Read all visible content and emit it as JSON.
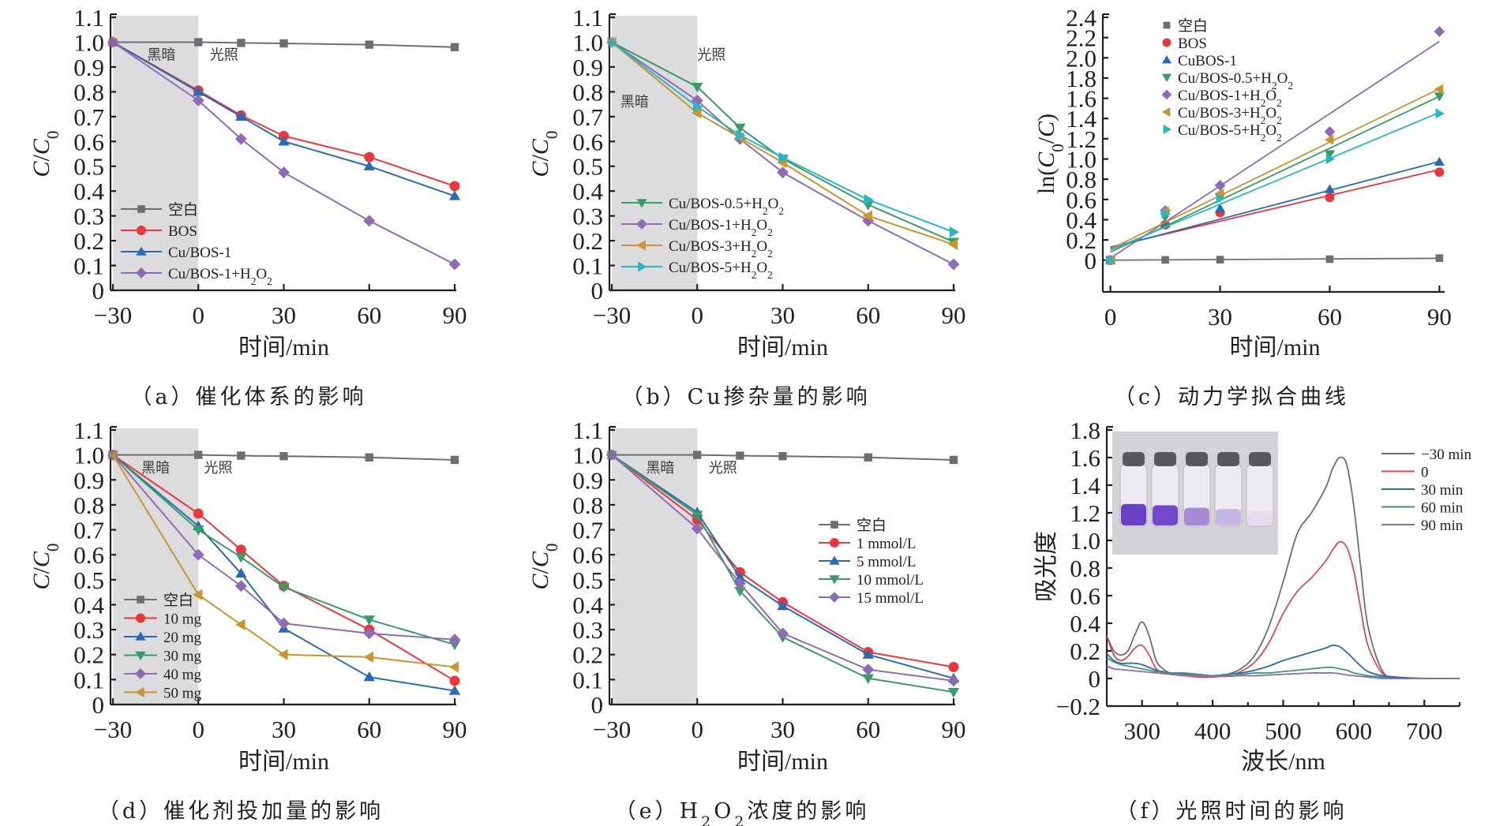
{
  "figure": {
    "markers_legend": {
      "square": "square",
      "circle": "circle",
      "up": "triangle-up",
      "down": "triangle-down",
      "diamond": "diamond",
      "left": "triangle-left",
      "right": "triangle-right"
    }
  },
  "chart_data": [
    {
      "id": "a",
      "type": "line",
      "caption": "（a）催化体系的影响",
      "xlabel": "时间/min",
      "ylabel": "C/C0",
      "xlim": [
        -30,
        90
      ],
      "ylim": [
        0,
        1.1
      ],
      "xticks": [
        -30,
        0,
        30,
        60,
        90
      ],
      "yticks": [
        0,
        0.1,
        0.2,
        0.3,
        0.4,
        0.5,
        0.6,
        0.7,
        0.8,
        0.9,
        1.0,
        1.1
      ],
      "ytick_labels": [
        "0",
        "0.1",
        "0.2",
        "0.3",
        "0.4",
        "0.5",
        "0.6",
        "0.7",
        "0.8",
        "0.9",
        "1.0",
        "1.1"
      ],
      "shaded_region": {
        "from": -30,
        "to": 0,
        "color": "#dcdcde"
      },
      "region_labels": {
        "dark": "黑暗",
        "light": "光照"
      },
      "region_label_pos": [
        {
          "x": -13,
          "y": 0.93
        },
        {
          "x": 9,
          "y": 0.93
        }
      ],
      "legend": "lower-left",
      "x": [
        -30,
        0,
        15,
        30,
        60,
        90
      ],
      "series": [
        {
          "name": "空白",
          "color": "#6d6e71",
          "marker": "square",
          "values": [
            1.0,
            1.0,
            0.997,
            0.995,
            0.99,
            0.98
          ]
        },
        {
          "name": "BOS",
          "color": "#e8383d",
          "marker": "circle",
          "values": [
            1.0,
            0.805,
            0.705,
            0.622,
            0.537,
            0.42
          ]
        },
        {
          "name": "Cu/BOS-1",
          "color": "#2a6ab5",
          "marker": "up",
          "values": [
            1.0,
            0.8,
            0.7,
            0.6,
            0.5,
            0.38
          ]
        },
        {
          "name": "Cu/BOS-1+H₂O₂",
          "color": "#8e6bb5",
          "marker": "diamond",
          "values": [
            1.0,
            0.765,
            0.61,
            0.475,
            0.28,
            0.105
          ]
        }
      ]
    },
    {
      "id": "b",
      "type": "line",
      "caption": "（b）Cu掺杂量的影响",
      "xlabel": "时间/min",
      "ylabel": "C/C0",
      "xlim": [
        -30,
        90
      ],
      "ylim": [
        0,
        1.1
      ],
      "xticks": [
        -30,
        0,
        30,
        60,
        90
      ],
      "yticks": [
        0,
        0.1,
        0.2,
        0.3,
        0.4,
        0.5,
        0.6,
        0.7,
        0.8,
        0.9,
        1.0,
        1.1
      ],
      "ytick_labels": [
        "0",
        "0.1",
        "0.2",
        "0.3",
        "0.4",
        "0.5",
        "0.6",
        "0.7",
        "0.8",
        "0.9",
        "1.0",
        "1.1"
      ],
      "shaded_region": {
        "from": -30,
        "to": 0,
        "color": "#dcdcde"
      },
      "region_labels": {
        "dark": "黑暗",
        "light": "光照"
      },
      "region_label_pos": [
        {
          "x": -22,
          "y": 0.74
        },
        {
          "x": 5,
          "y": 0.93
        }
      ],
      "legend": "lower-left",
      "x": [
        -30,
        0,
        15,
        30,
        60,
        90
      ],
      "series": [
        {
          "name": "Cu/BOS-0.5+H₂O₂",
          "color": "#3a9a68",
          "marker": "down",
          "values": [
            1.0,
            0.82,
            0.655,
            0.53,
            0.345,
            0.195
          ]
        },
        {
          "name": "Cu/BOS-1+H₂O₂",
          "color": "#8e6bb5",
          "marker": "diamond",
          "values": [
            1.0,
            0.765,
            0.61,
            0.475,
            0.28,
            0.105
          ]
        },
        {
          "name": "Cu/BOS-3+H₂O₂",
          "color": "#c9952e",
          "marker": "left",
          "values": [
            1.0,
            0.715,
            0.615,
            0.515,
            0.3,
            0.185
          ]
        },
        {
          "name": "Cu/BOS-5+H₂O₂",
          "color": "#27b7c0",
          "marker": "right",
          "values": [
            1.0,
            0.74,
            0.625,
            0.535,
            0.365,
            0.235
          ]
        }
      ]
    },
    {
      "id": "c",
      "type": "scatter",
      "caption": "（c）动力学拟合曲线",
      "xlabel": "时间/min",
      "ylabel": "ln(C0/C)",
      "xlim": [
        -1,
        91
      ],
      "ylim": [
        -0.15,
        2.4
      ],
      "xticks": [
        0,
        30,
        60,
        90
      ],
      "yticks": [
        0,
        0.2,
        0.4,
        0.6,
        0.8,
        1.0,
        1.2,
        1.4,
        1.6,
        1.8,
        2.0,
        2.2,
        2.4
      ],
      "ytick_labels": [
        "0",
        "0.2",
        "0.4",
        "0.6",
        "0.8",
        "1.0",
        "1.2",
        "1.4",
        "1.6",
        "1.8",
        "2.0",
        "2.2",
        "2.4"
      ],
      "legend": "top-left",
      "x": [
        0,
        15,
        30,
        60,
        90
      ],
      "series": [
        {
          "name": "空白",
          "color": "#6d6e71",
          "marker": "square",
          "values": [
            0,
            0.003,
            0.005,
            0.01,
            0.02
          ],
          "fit": [
            0,
            0.0002
          ]
        },
        {
          "name": "BOS",
          "color": "#e8383d",
          "marker": "circle",
          "values": [
            0,
            0.35,
            0.47,
            0.62,
            0.87
          ],
          "fit": [
            0.13,
            0.0085
          ]
        },
        {
          "name": "CuBOS-1",
          "color": "#2a6ab5",
          "marker": "up",
          "values": [
            0,
            0.36,
            0.51,
            0.7,
            0.97
          ],
          "fit": [
            0.12,
            0.0095
          ]
        },
        {
          "name": "Cu/BOS-0.5+H₂O₂",
          "color": "#3a9a68",
          "marker": "down",
          "values": [
            0,
            0.43,
            0.62,
            1.05,
            1.62
          ],
          "fit": [
            0.08,
            0.0171
          ]
        },
        {
          "name": "Cu/BOS-1+H₂O₂",
          "color": "#8e6bb5",
          "marker": "diamond",
          "values": [
            0,
            0.49,
            0.74,
            1.27,
            2.26
          ],
          "fit": [
            0.02,
            0.0238
          ]
        },
        {
          "name": "Cu/BOS-3+H₂O₂",
          "color": "#c9952e",
          "marker": "left",
          "values": [
            0,
            0.48,
            0.66,
            1.19,
            1.69
          ],
          "fit": [
            0.11,
            0.0176
          ]
        },
        {
          "name": "Cu/BOS-5+H₂O₂",
          "color": "#27b7c0",
          "marker": "right",
          "values": [
            0,
            0.46,
            0.61,
            1.0,
            1.45
          ],
          "fit": [
            0.1,
            0.0151
          ]
        }
      ]
    },
    {
      "id": "d",
      "type": "line",
      "caption": "（d）催化剂投加量的影响",
      "xlabel": "时间/min",
      "ylabel": "C/C0",
      "xlim": [
        -30,
        90
      ],
      "ylim": [
        0,
        1.1
      ],
      "xticks": [
        -30,
        0,
        30,
        60,
        90
      ],
      "yticks": [
        0,
        0.1,
        0.2,
        0.3,
        0.4,
        0.5,
        0.6,
        0.7,
        0.8,
        0.9,
        1.0,
        1.1
      ],
      "ytick_labels": [
        "0",
        "0.1",
        "0.2",
        "0.3",
        "0.4",
        "0.5",
        "0.6",
        "0.7",
        "0.8",
        "0.9",
        "1.0",
        "1.1"
      ],
      "shaded_region": {
        "from": -30,
        "to": 0,
        "color": "#dcdcde"
      },
      "region_labels": {
        "dark": "黑暗",
        "light": "光照"
      },
      "region_label_pos": [
        {
          "x": -15,
          "y": 0.93
        },
        {
          "x": 7,
          "y": 0.93
        }
      ],
      "legend": "lower-left",
      "x": [
        -30,
        0,
        15,
        30,
        60,
        90
      ],
      "series": [
        {
          "name": "空白",
          "color": "#6d6e71",
          "marker": "square",
          "values": [
            1.0,
            1.0,
            0.997,
            0.995,
            0.99,
            0.98
          ]
        },
        {
          "name": "10 mg",
          "color": "#e8383d",
          "marker": "circle",
          "values": [
            1.0,
            0.765,
            0.62,
            0.475,
            0.3,
            0.095
          ]
        },
        {
          "name": "20 mg",
          "color": "#2a6ab5",
          "marker": "up",
          "values": [
            1.0,
            0.715,
            0.525,
            0.305,
            0.11,
            0.055
          ]
        },
        {
          "name": "30 mg",
          "color": "#3a9a68",
          "marker": "down",
          "values": [
            1.0,
            0.7,
            0.59,
            0.47,
            0.34,
            0.24
          ]
        },
        {
          "name": "40 mg",
          "color": "#8e6bb5",
          "marker": "diamond",
          "values": [
            1.0,
            0.6,
            0.475,
            0.325,
            0.285,
            0.26
          ]
        },
        {
          "name": "50 mg",
          "color": "#c9952e",
          "marker": "left",
          "values": [
            1.0,
            0.44,
            0.32,
            0.2,
            0.19,
            0.15
          ]
        }
      ]
    },
    {
      "id": "e",
      "type": "line",
      "caption": "（e）H₂O₂浓度的影响",
      "xlabel": "时间/min",
      "ylabel": "C/C0",
      "xlim": [
        -30,
        90
      ],
      "ylim": [
        0,
        1.1
      ],
      "xticks": [
        -30,
        0,
        30,
        60,
        90
      ],
      "yticks": [
        0,
        0.1,
        0.2,
        0.3,
        0.4,
        0.5,
        0.6,
        0.7,
        0.8,
        0.9,
        1.0,
        1.1
      ],
      "ytick_labels": [
        "0",
        "0.1",
        "0.2",
        "0.3",
        "0.4",
        "0.5",
        "0.6",
        "0.7",
        "0.8",
        "0.9",
        "1.0",
        "1.1"
      ],
      "shaded_region": {
        "from": -30,
        "to": 0,
        "color": "#dcdcde"
      },
      "region_labels": {
        "dark": "黑暗",
        "light": "光照"
      },
      "region_label_pos": [
        {
          "x": -13,
          "y": 0.93
        },
        {
          "x": 9,
          "y": 0.93
        }
      ],
      "legend": "center-right",
      "x": [
        -30,
        0,
        15,
        30,
        60,
        90
      ],
      "series": [
        {
          "name": "空白",
          "color": "#6d6e71",
          "marker": "square",
          "values": [
            1.0,
            1.0,
            0.997,
            0.995,
            0.99,
            0.98
          ]
        },
        {
          "name": "1 mmol/L",
          "color": "#e8383d",
          "marker": "circle",
          "values": [
            1.0,
            0.74,
            0.53,
            0.41,
            0.21,
            0.15
          ]
        },
        {
          "name": "5 mmol/L",
          "color": "#2a6ab5",
          "marker": "up",
          "values": [
            1.0,
            0.77,
            0.51,
            0.395,
            0.2,
            0.105
          ]
        },
        {
          "name": "10 mmol/L",
          "color": "#3a9a68",
          "marker": "down",
          "values": [
            1.0,
            0.76,
            0.455,
            0.27,
            0.105,
            0.05
          ]
        },
        {
          "name": "15 mmol/L",
          "color": "#8e6bb5",
          "marker": "diamond",
          "values": [
            1.0,
            0.705,
            0.485,
            0.285,
            0.14,
            0.095
          ]
        }
      ]
    },
    {
      "id": "f",
      "type": "line",
      "caption": "（f）光照时间的影响",
      "xlabel": "波长/nm",
      "ylabel": "吸光度",
      "xlim": [
        250,
        750
      ],
      "ylim": [
        -0.2,
        1.8
      ],
      "xticks": [
        300,
        400,
        500,
        600,
        700
      ],
      "xminor": [
        350,
        450,
        550,
        650,
        750
      ],
      "yticks": [
        -0.2,
        0,
        0.2,
        0.4,
        0.6,
        0.8,
        1.0,
        1.2,
        1.4,
        1.6,
        1.8
      ],
      "ytick_labels": [
        "-0.2",
        "0",
        "0.2",
        "0.4",
        "0.6",
        "0.8",
        "1.0",
        "1.2",
        "1.4",
        "1.6",
        "1.8"
      ],
      "legend": "top-right",
      "inset": "photo of five vials with purple solution fading from dark violet to clear",
      "x": [
        250,
        260,
        270,
        280,
        290,
        300,
        310,
        320,
        330,
        340,
        360,
        380,
        400,
        420,
        440,
        460,
        480,
        500,
        520,
        540,
        560,
        570,
        580,
        590,
        600,
        610,
        620,
        640,
        660,
        700,
        750
      ],
      "series": [
        {
          "name": "−30 min",
          "color": "#6d6e71",
          "values": [
            0.31,
            0.2,
            0.17,
            0.2,
            0.32,
            0.41,
            0.31,
            0.13,
            0.07,
            0.04,
            0.03,
            0.02,
            0.02,
            0.03,
            0.07,
            0.17,
            0.38,
            0.7,
            1.05,
            1.2,
            1.38,
            1.52,
            1.6,
            1.55,
            1.25,
            0.8,
            0.38,
            0.06,
            0.01,
            0.0,
            0.0
          ]
        },
        {
          "name": "0",
          "color": "#e0484c",
          "values": [
            0.31,
            0.17,
            0.13,
            0.16,
            0.22,
            0.24,
            0.17,
            0.07,
            0.04,
            0.03,
            0.02,
            0.01,
            0.01,
            0.02,
            0.05,
            0.12,
            0.26,
            0.47,
            0.63,
            0.73,
            0.85,
            0.93,
            0.99,
            0.95,
            0.78,
            0.5,
            0.24,
            0.04,
            0.01,
            0.0,
            0.0
          ]
        },
        {
          "name": "30 min",
          "color": "#2a6ab5",
          "values": [
            0.18,
            0.13,
            0.11,
            0.11,
            0.11,
            0.1,
            0.08,
            0.06,
            0.05,
            0.04,
            0.03,
            0.03,
            0.02,
            0.03,
            0.04,
            0.06,
            0.09,
            0.13,
            0.16,
            0.19,
            0.22,
            0.24,
            0.23,
            0.19,
            0.14,
            0.09,
            0.05,
            0.02,
            0.01,
            0.0,
            0.0
          ]
        },
        {
          "name": "60 min",
          "color": "#3a9a68",
          "values": [
            0.15,
            0.12,
            0.1,
            0.09,
            0.08,
            0.07,
            0.06,
            0.05,
            0.05,
            0.04,
            0.04,
            0.03,
            0.02,
            0.03,
            0.03,
            0.04,
            0.04,
            0.05,
            0.06,
            0.07,
            0.08,
            0.08,
            0.07,
            0.06,
            0.04,
            0.03,
            0.02,
            0.01,
            0.0,
            0.0,
            0.0
          ]
        },
        {
          "name": "90 min",
          "color": "#8e6bb5",
          "values": [
            0.09,
            0.07,
            0.065,
            0.06,
            0.055,
            0.05,
            0.045,
            0.04,
            0.035,
            0.03,
            0.025,
            0.02,
            0.015,
            0.015,
            0.02,
            0.02,
            0.025,
            0.03,
            0.035,
            0.04,
            0.04,
            0.04,
            0.035,
            0.025,
            0.02,
            0.015,
            0.01,
            0.0,
            0.0,
            0.0,
            0.0
          ]
        }
      ]
    }
  ]
}
